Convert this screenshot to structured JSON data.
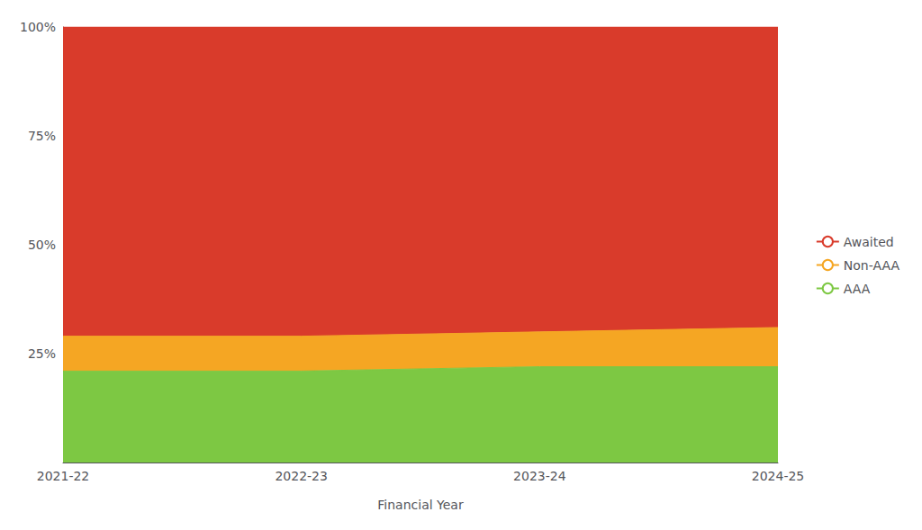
{
  "chart_data": {
    "type": "area",
    "stacked": true,
    "xlabel": "Financial Year",
    "categories": [
      "2021-22",
      "2022-23",
      "2023-24",
      "2024-25"
    ],
    "series": [
      {
        "name": "AAA",
        "color": "#7DC843",
        "values": [
          21,
          21,
          22,
          22
        ]
      },
      {
        "name": "Non-AAA",
        "color": "#F5A623",
        "values": [
          8,
          8,
          8,
          9
        ]
      },
      {
        "name": "Awaited",
        "color": "#D93B2B",
        "values": [
          71,
          71,
          70,
          69
        ]
      }
    ],
    "ylim": [
      0,
      100
    ],
    "yticks": [
      {
        "value": 25,
        "label": "25%"
      },
      {
        "value": 50,
        "label": "50%"
      },
      {
        "value": 75,
        "label": "75%"
      },
      {
        "value": 100,
        "label": "100%"
      }
    ],
    "grid": false,
    "legend": "right"
  }
}
